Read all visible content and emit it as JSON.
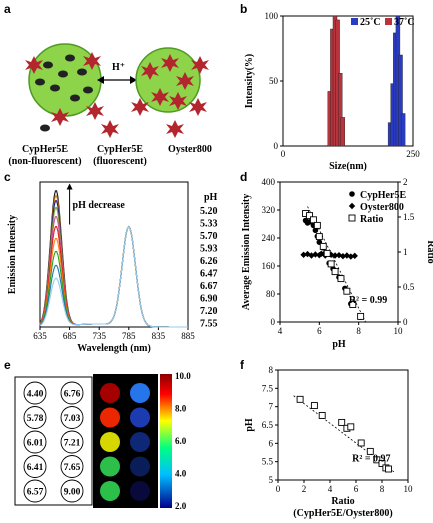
{
  "panels": {
    "a": {
      "letter": "a",
      "arrow_label": "H⁺",
      "labels": [
        "CypHer5E",
        "(non-fluorescent)",
        "CypHer5E",
        "(fluorescent)",
        "Oyster800"
      ]
    },
    "e": {
      "letter": "e",
      "colorbar_ticks": [
        "10.0",
        "8.0",
        "6.0",
        "4.0",
        "2.0"
      ],
      "wells": [
        [
          "4.40",
          "6.76"
        ],
        [
          "5.78",
          "7.03"
        ],
        [
          "6.01",
          "7.21"
        ],
        [
          "6.41",
          "7.65"
        ],
        [
          "6.57",
          "9.00"
        ]
      ]
    }
  },
  "chart_data": [
    {
      "panel": "b",
      "type": "bar",
      "xlabel": "Size(nm)",
      "ylabel": "Intensity(%)",
      "xlim": [
        0,
        250
      ],
      "ylim": [
        0,
        100
      ],
      "xticks": [
        "0",
        "250"
      ],
      "yticks": [
        "0",
        "50",
        "100"
      ],
      "legend": "top-right",
      "series": [
        {
          "name": "25˚C",
          "color": "#2b3cc4",
          "x": [
            206,
            211,
            216,
            221,
            226,
            231
          ],
          "values": [
            18,
            48,
            87,
            100,
            70,
            25
          ]
        },
        {
          "name": "37˚C",
          "color": "#b8333b",
          "x": [
            90,
            95,
            100,
            105,
            110,
            115
          ],
          "values": [
            42,
            90,
            100,
            97,
            56,
            22
          ]
        }
      ]
    },
    {
      "panel": "c",
      "type": "line",
      "xlabel": "Wavelength (nm)",
      "ylabel": "Emission Intensity",
      "xlim": [
        635,
        885
      ],
      "ylim": [
        0,
        290
      ],
      "xticks": [
        "635",
        "685",
        "735",
        "785",
        "835",
        "885"
      ],
      "annotation": "pH decrease",
      "legend_title": "pH",
      "legend": "right",
      "series": [
        {
          "name": "5.20",
          "color": "#111111",
          "peak": 272
        },
        {
          "name": "5.33",
          "color": "#cc7a00",
          "peak": 262
        },
        {
          "name": "5.70",
          "color": "#1a1a8c",
          "peak": 252
        },
        {
          "name": "5.93",
          "color": "#7a9e2a",
          "peak": 238
        },
        {
          "name": "6.26",
          "color": "#c94f9a",
          "peak": 220
        },
        {
          "name": "6.47",
          "color": "#e01b1b",
          "peak": 200
        },
        {
          "name": "6.67",
          "color": "#ff7f0e",
          "peak": 176
        },
        {
          "name": "6.90",
          "color": "#1ea51e",
          "peak": 150
        },
        {
          "name": "7.20",
          "color": "#1f77b4",
          "peak": 122
        },
        {
          "name": "7.55",
          "color": "#9ac9ee",
          "peak": 96
        }
      ],
      "second_peak": {
        "x": 785,
        "y": 198
      }
    },
    {
      "panel": "d",
      "type": "scatter",
      "xlabel": "pH",
      "ylabel": "Average Emission Intensity",
      "y2label": "Ratio",
      "xlim": [
        4,
        10
      ],
      "ylim": [
        0,
        400
      ],
      "y2lim": [
        0,
        2
      ],
      "xticks": [
        "4",
        "6",
        "8",
        "10"
      ],
      "yticks": [
        "0",
        "80",
        "160",
        "240",
        "320",
        "400"
      ],
      "y2ticks": [
        "0",
        "0.5",
        "1",
        "1.5",
        "2"
      ],
      "legend": "top-right",
      "annotation": "R² = 0.99",
      "series": [
        {
          "name": "CypHer5E",
          "marker": "circle",
          "x": [
            5.3,
            5.4,
            5.5,
            5.7,
            5.8,
            5.9,
            6.0,
            6.2,
            6.3,
            6.5,
            6.7,
            7.0,
            7.3,
            7.6,
            8.1
          ],
          "y": [
            290,
            283,
            286,
            276,
            262,
            245,
            228,
            212,
            196,
            168,
            152,
            128,
            96,
            52,
            14
          ]
        },
        {
          "name": "Oyster800",
          "marker": "diamond",
          "x": [
            5.2,
            5.4,
            5.6,
            5.8,
            6.0,
            6.1,
            6.3,
            6.5,
            6.6,
            6.8,
            7.0,
            7.2,
            7.4,
            7.6,
            7.8
          ],
          "y": [
            192,
            194,
            190,
            193,
            191,
            195,
            190,
            194,
            192,
            190,
            191,
            188,
            190,
            187,
            189
          ]
        },
        {
          "name": "Ratio",
          "marker": "square",
          "x": [
            5.3,
            5.5,
            5.7,
            5.9,
            6.0,
            6.2,
            6.4,
            6.6,
            6.8,
            7.1,
            7.4,
            7.7,
            8.1
          ],
          "y2": [
            1.55,
            1.52,
            1.46,
            1.38,
            1.22,
            1.08,
            0.98,
            0.83,
            0.72,
            0.62,
            0.44,
            0.25,
            0.08
          ]
        }
      ]
    },
    {
      "panel": "f",
      "type": "scatter",
      "xlabel": "Ratio",
      "xlabel2": "(CypHer5E/Oyster800)",
      "ylabel": "pH",
      "xlim": [
        0,
        10
      ],
      "ylim": [
        5,
        8
      ],
      "xticks": [
        "0",
        "2",
        "4",
        "6",
        "8",
        "10"
      ],
      "yticks": [
        "5",
        "5.5",
        "6",
        "6.5",
        "7",
        "7.5",
        "8"
      ],
      "annotation": "R² = 0.97",
      "series": [
        {
          "marker": "square",
          "x": [
            1.7,
            2.8,
            3.4,
            4.9,
            5.3,
            5.6,
            6.4,
            7.1,
            7.6,
            8.0,
            8.3,
            8.5
          ],
          "y": [
            7.2,
            7.03,
            6.76,
            6.57,
            6.41,
            6.45,
            6.01,
            5.78,
            5.55,
            5.45,
            5.33,
            5.3
          ]
        }
      ]
    }
  ]
}
